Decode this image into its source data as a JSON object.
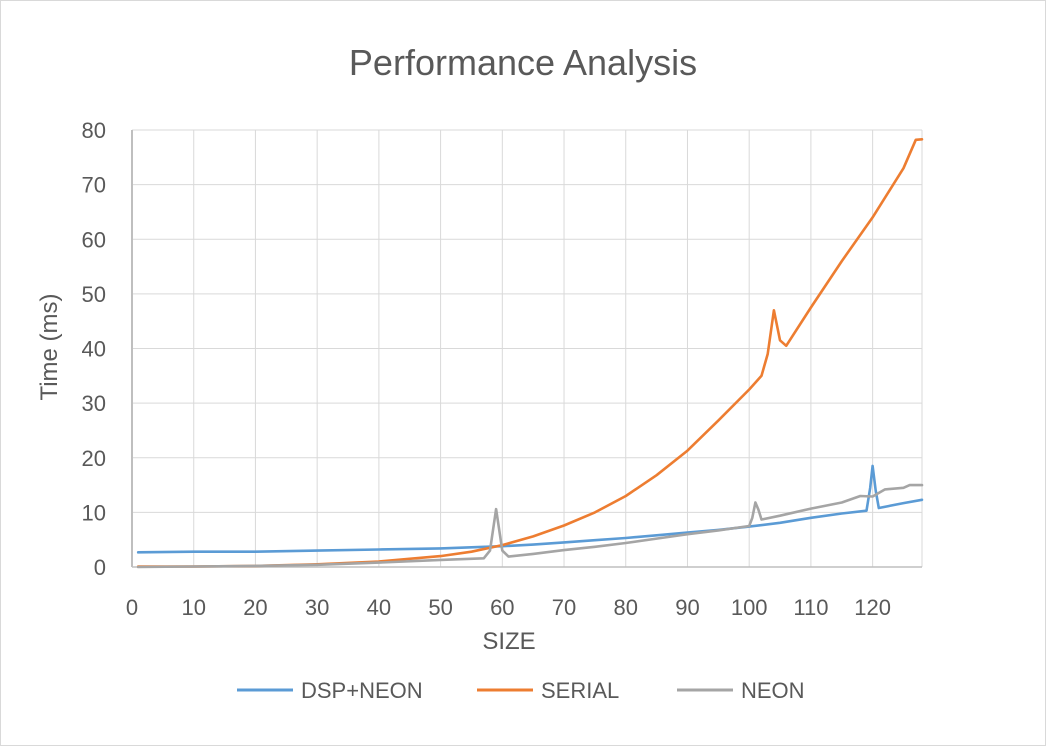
{
  "chart_data": {
    "type": "line",
    "title": "Performance Analysis",
    "xlabel": "SIZE",
    "ylabel": "Time (ms)",
    "xlim": [
      0,
      128
    ],
    "ylim": [
      0,
      80
    ],
    "xticks": [
      0,
      10,
      20,
      30,
      40,
      50,
      60,
      70,
      80,
      90,
      100,
      110,
      120
    ],
    "yticks": [
      0,
      10,
      20,
      30,
      40,
      50,
      60,
      70,
      80
    ],
    "grid": true,
    "legend_position": "bottom",
    "series": [
      {
        "name": "DSP+NEON",
        "color": "#5b9bd5",
        "points": [
          [
            1,
            2.7
          ],
          [
            10,
            2.8
          ],
          [
            20,
            2.8
          ],
          [
            30,
            3.0
          ],
          [
            40,
            3.2
          ],
          [
            50,
            3.4
          ],
          [
            55,
            3.6
          ],
          [
            60,
            3.8
          ],
          [
            65,
            4.1
          ],
          [
            70,
            4.5
          ],
          [
            75,
            4.9
          ],
          [
            80,
            5.3
          ],
          [
            85,
            5.8
          ],
          [
            90,
            6.3
          ],
          [
            95,
            6.8
          ],
          [
            100,
            7.4
          ],
          [
            105,
            8.1
          ],
          [
            110,
            9.0
          ],
          [
            115,
            9.8
          ],
          [
            119,
            10.3
          ],
          [
            119.6,
            14.5
          ],
          [
            120,
            18.5
          ],
          [
            120.5,
            14.0
          ],
          [
            121,
            10.8
          ],
          [
            125,
            11.7
          ],
          [
            128,
            12.3
          ]
        ]
      },
      {
        "name": "SERIAL",
        "color": "#ed7d31",
        "points": [
          [
            1,
            0.1
          ],
          [
            10,
            0.1
          ],
          [
            20,
            0.2
          ],
          [
            30,
            0.5
          ],
          [
            40,
            1.0
          ],
          [
            50,
            2.0
          ],
          [
            55,
            2.8
          ],
          [
            60,
            4.0
          ],
          [
            65,
            5.6
          ],
          [
            70,
            7.6
          ],
          [
            75,
            10.0
          ],
          [
            80,
            13.0
          ],
          [
            85,
            16.8
          ],
          [
            90,
            21.3
          ],
          [
            95,
            26.8
          ],
          [
            100,
            32.5
          ],
          [
            102,
            35.0
          ],
          [
            103,
            39.0
          ],
          [
            104,
            47.0
          ],
          [
            105,
            41.5
          ],
          [
            106,
            40.5
          ],
          [
            110,
            47.5
          ],
          [
            115,
            56.0
          ],
          [
            120,
            64.0
          ],
          [
            125,
            73.0
          ],
          [
            127,
            78.2
          ],
          [
            128,
            78.3
          ]
        ]
      },
      {
        "name": "NEON",
        "color": "#a5a5a5",
        "points": [
          [
            1,
            0.0
          ],
          [
            10,
            0.1
          ],
          [
            20,
            0.2
          ],
          [
            30,
            0.4
          ],
          [
            40,
            0.8
          ],
          [
            50,
            1.3
          ],
          [
            57,
            1.6
          ],
          [
            58,
            3.0
          ],
          [
            59,
            10.6
          ],
          [
            60,
            3.0
          ],
          [
            61,
            1.9
          ],
          [
            65,
            2.4
          ],
          [
            70,
            3.1
          ],
          [
            75,
            3.7
          ],
          [
            80,
            4.4
          ],
          [
            85,
            5.2
          ],
          [
            90,
            6.0
          ],
          [
            95,
            6.7
          ],
          [
            100,
            7.5
          ],
          [
            100.5,
            9.0
          ],
          [
            101,
            11.8
          ],
          [
            101.5,
            10.5
          ],
          [
            102,
            8.7
          ],
          [
            105,
            9.4
          ],
          [
            110,
            10.7
          ],
          [
            115,
            11.8
          ],
          [
            118,
            13.0
          ],
          [
            120,
            12.9
          ],
          [
            122,
            14.2
          ],
          [
            125,
            14.5
          ],
          [
            126,
            15.0
          ],
          [
            128,
            15.0
          ]
        ]
      }
    ]
  }
}
